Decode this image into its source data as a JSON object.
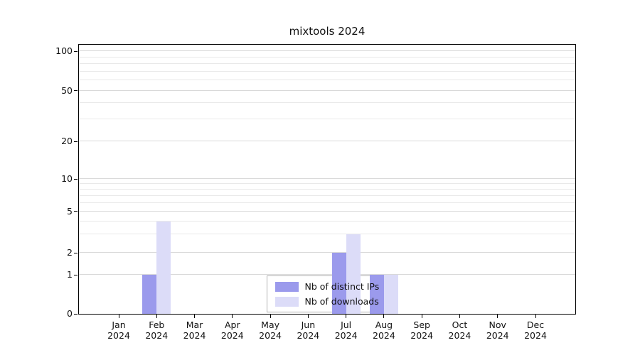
{
  "chart_data": {
    "type": "bar",
    "title": "mixtools 2024",
    "categories": [
      "Jan",
      "Feb",
      "Mar",
      "Apr",
      "May",
      "Jun",
      "Jul",
      "Aug",
      "Sep",
      "Oct",
      "Nov",
      "Dec"
    ],
    "category_year": "2024",
    "series": [
      {
        "name": "Nb of distinct IPs",
        "color": "#9b9aec",
        "values": [
          0,
          1,
          0,
          0,
          0,
          0,
          2,
          1,
          0,
          0,
          0,
          0
        ]
      },
      {
        "name": "Nb of downloads",
        "color": "#dcdcf8",
        "values": [
          0,
          4,
          0,
          0,
          0,
          0,
          3,
          1,
          0,
          0,
          0,
          0
        ]
      }
    ],
    "xlabel": "",
    "ylabel": "",
    "ylim": [
      0,
      100
    ],
    "y_scale": "log (zero anchored at baseline)",
    "y_ticks": [
      0,
      1,
      2,
      5,
      10,
      20,
      50,
      100
    ],
    "y_minor_ticks": [
      3,
      4,
      6,
      7,
      8,
      9,
      30,
      40,
      60,
      70,
      80,
      90
    ],
    "grid": "horizontal",
    "legend_position": "lower-center-inside",
    "axis_color": "#000000",
    "grid_major_color": "#d9d9d9",
    "grid_minor_color": "#e9e9e9",
    "y_tick_fractions": {
      "0": 0,
      "1": 0.145,
      "2": 0.226,
      "5": 0.381,
      "10": 0.501,
      "20": 0.64,
      "50": 0.829,
      "100": 0.976
    }
  }
}
